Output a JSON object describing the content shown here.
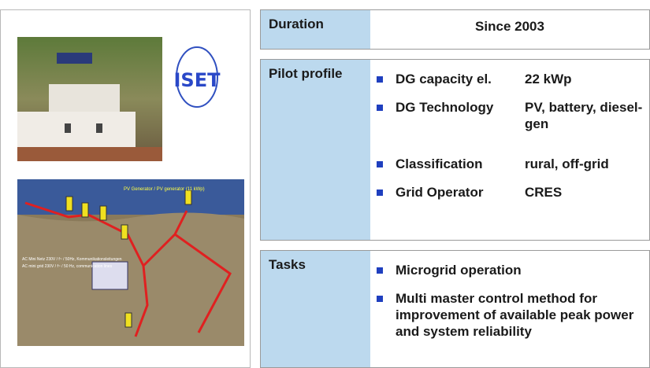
{
  "left": {
    "logo": "ISET",
    "map_labels": [
      "PV Generator / PV generator (11 kWp)",
      "AC Mini Netz 230V / f~ / 50Hz, Kommunikationsleitungen",
      "AC mini grid 230V / f~ / 50 Hz, communication lines"
    ]
  },
  "rows": [
    {
      "label": "Duration",
      "value": "Since 2003"
    },
    {
      "label": "Pilot profile",
      "items": [
        {
          "key": "DG capacity el.",
          "value": "22 kWp"
        },
        {
          "key": "DG Technology",
          "value": "PV, battery, diesel-gen"
        },
        {
          "key": "Classification",
          "value": "rural, off-grid"
        },
        {
          "key": "Grid Operator",
          "value": "CRES"
        }
      ]
    },
    {
      "label": "Tasks",
      "items": [
        "Microgrid operation",
        "Multi master control method for improvement of available peak power and system reliability"
      ]
    }
  ]
}
